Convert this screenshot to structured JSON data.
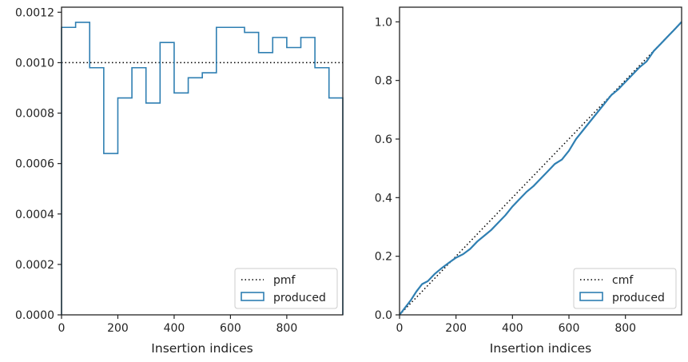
{
  "colors": {
    "produced": "#2f7fb2",
    "reference": "#000000",
    "axes": "#222222"
  },
  "chart_data": [
    {
      "type": "line",
      "subtype": "step histogram",
      "xlabel": "Insertion indices",
      "ylabel": "",
      "xlim": [
        0,
        999
      ],
      "ylim": [
        0,
        0.00122
      ],
      "xticks": [
        "0",
        "200",
        "400",
        "600",
        "800"
      ],
      "yticks": [
        "0.0000",
        "0.0002",
        "0.0004",
        "0.0006",
        "0.0008",
        "0.0010",
        "0.0012"
      ],
      "xtick_values": [
        0,
        200,
        400,
        600,
        800
      ],
      "ytick_values": [
        0,
        0.0002,
        0.0004,
        0.0006,
        0.0008,
        0.001,
        0.0012
      ],
      "grid": false,
      "legend_position": "bottom-right",
      "series": [
        {
          "name": "pmf",
          "style": "dotted",
          "x": [
            0,
            999
          ],
          "y": [
            0.001,
            0.001
          ]
        },
        {
          "name": "produced",
          "style": "step",
          "bin_edges": [
            0,
            50,
            100,
            150,
            200,
            250,
            300,
            350,
            400,
            450,
            500,
            550,
            600,
            650,
            700,
            750,
            800,
            850,
            900,
            950,
            999
          ],
          "values": [
            0.00114,
            0.00116,
            0.00098,
            0.00064,
            0.00086,
            0.00098,
            0.00084,
            0.00108,
            0.00088,
            0.00094,
            0.00096,
            0.00114,
            0.00114,
            0.00112,
            0.00104,
            0.0011,
            0.00106,
            0.0011,
            0.00098,
            0.00086
          ]
        }
      ]
    },
    {
      "type": "line",
      "subtype": "cumulative",
      "xlabel": "Insertion indices",
      "ylabel": "",
      "xlim": [
        0,
        999
      ],
      "ylim": [
        0,
        1.05
      ],
      "xticks": [
        "0",
        "200",
        "400",
        "600",
        "800"
      ],
      "yticks": [
        "0.0",
        "0.2",
        "0.4",
        "0.6",
        "0.8",
        "1.0"
      ],
      "xtick_values": [
        0,
        200,
        400,
        600,
        800
      ],
      "ytick_values": [
        0,
        0.2,
        0.4,
        0.6,
        0.8,
        1.0
      ],
      "grid": false,
      "legend_position": "bottom-right",
      "series": [
        {
          "name": "cmf",
          "style": "dotted",
          "x": [
            0,
            999
          ],
          "y": [
            0,
            1.0
          ]
        },
        {
          "name": "produced",
          "style": "solid",
          "x": [
            0,
            20,
            40,
            60,
            80,
            100,
            125,
            150,
            175,
            200,
            225,
            250,
            275,
            300,
            325,
            350,
            375,
            400,
            425,
            450,
            475,
            500,
            525,
            550,
            575,
            600,
            625,
            650,
            675,
            700,
            725,
            750,
            775,
            800,
            825,
            850,
            875,
            900,
            925,
            950,
            975,
            999
          ],
          "y": [
            0,
            0.025,
            0.05,
            0.08,
            0.105,
            0.115,
            0.14,
            0.16,
            0.178,
            0.195,
            0.207,
            0.225,
            0.25,
            0.27,
            0.29,
            0.315,
            0.34,
            0.37,
            0.395,
            0.42,
            0.44,
            0.465,
            0.49,
            0.515,
            0.53,
            0.56,
            0.6,
            0.63,
            0.66,
            0.69,
            0.72,
            0.75,
            0.77,
            0.795,
            0.82,
            0.845,
            0.865,
            0.9,
            0.925,
            0.95,
            0.975,
            1.0
          ]
        }
      ]
    }
  ]
}
